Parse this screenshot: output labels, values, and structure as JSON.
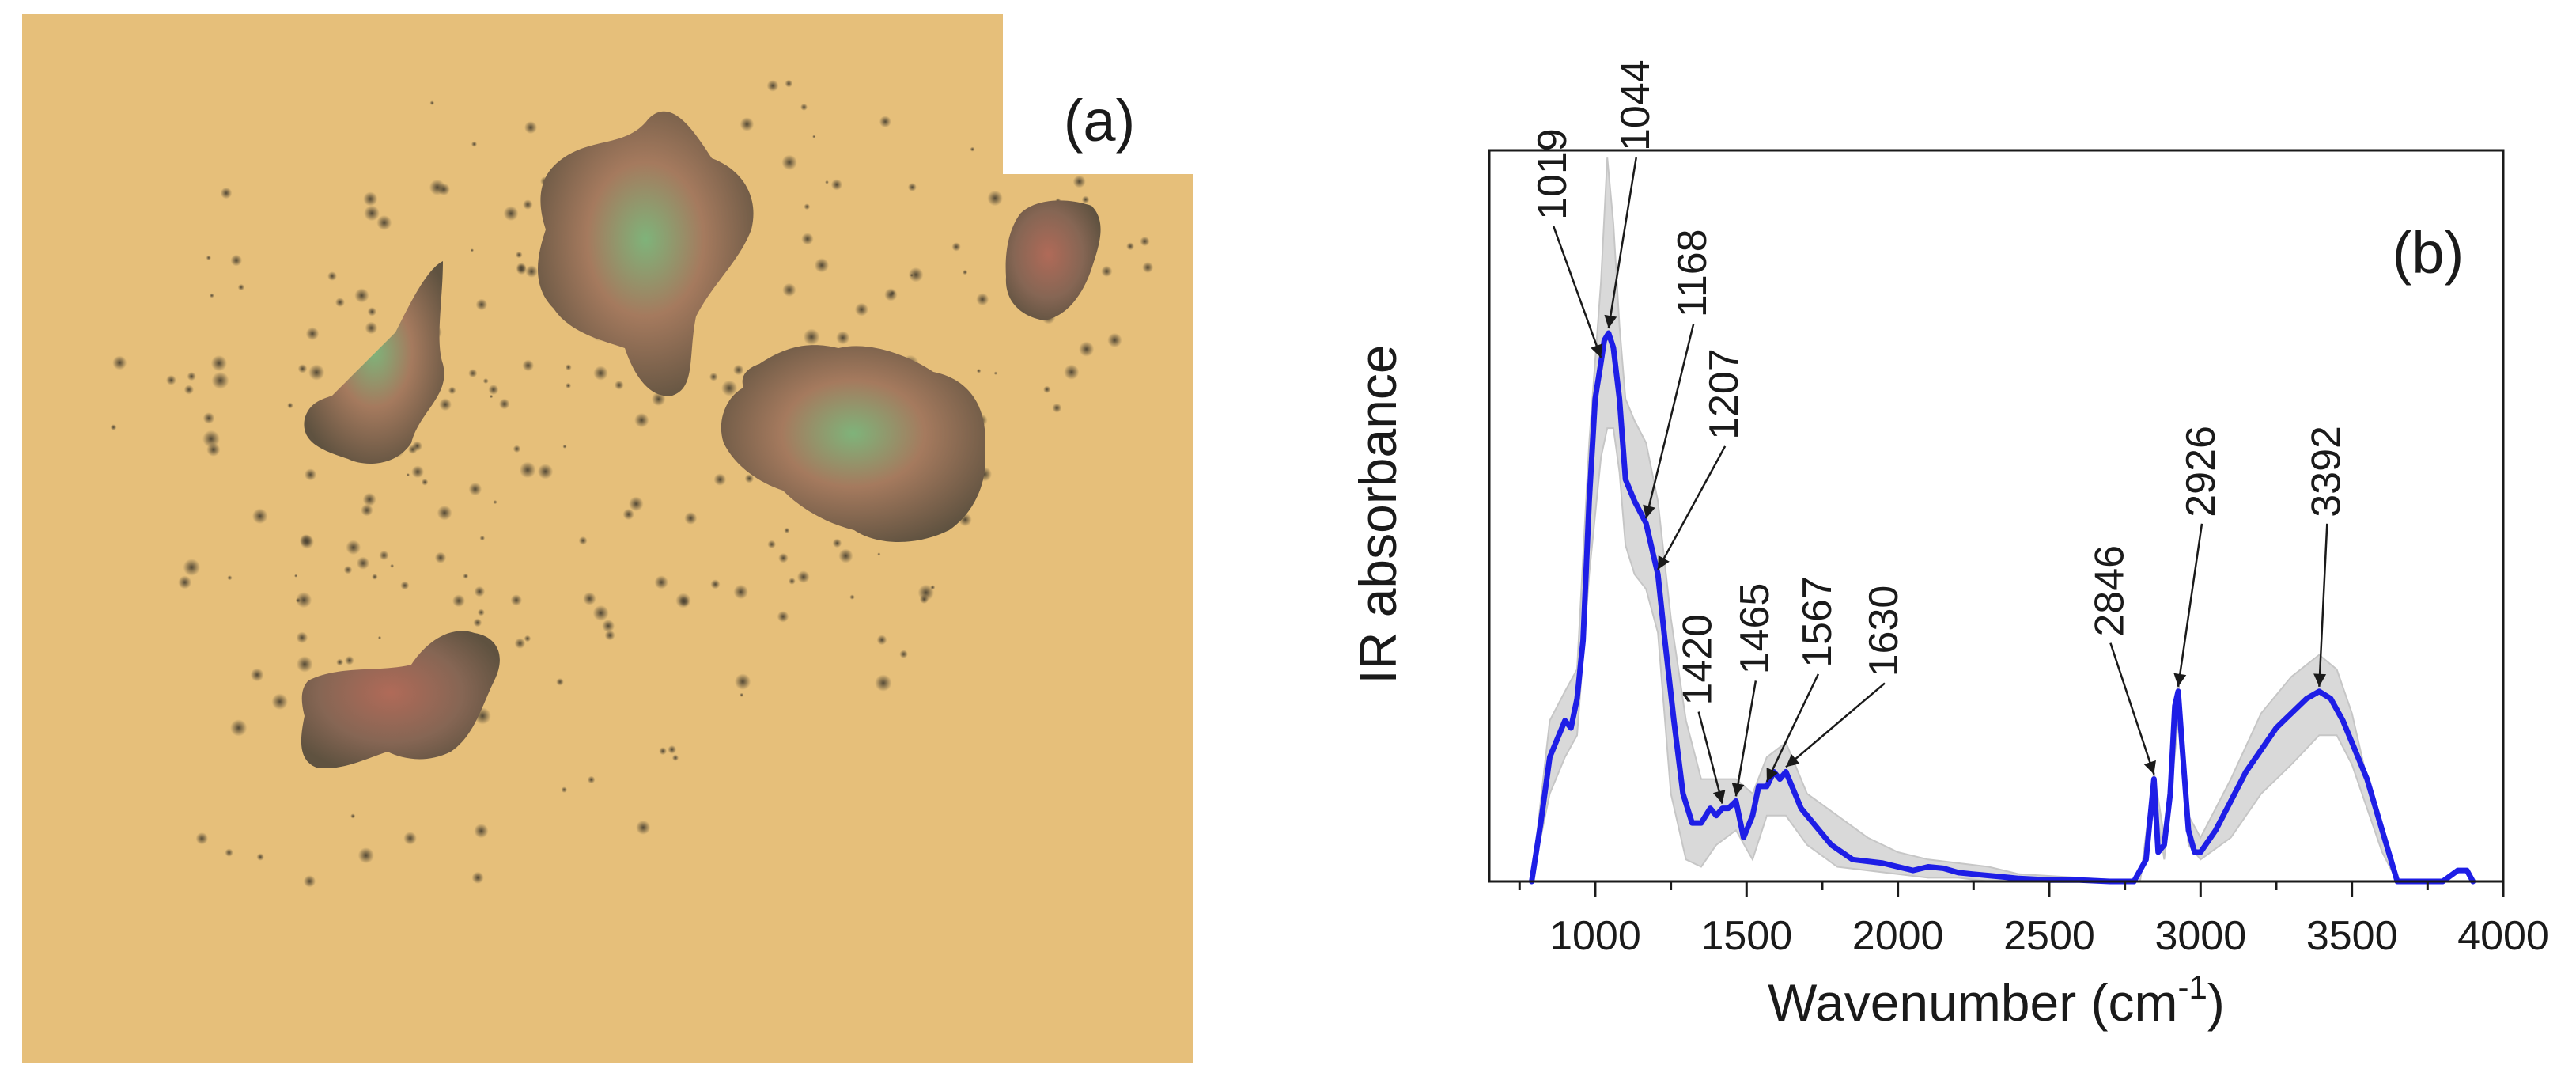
{
  "figure": {
    "panel_a": {
      "label": "(a)",
      "colors": {
        "background": "#e7c07a",
        "particle_dark": "#6d6049",
        "particle_green": "#6f9b6a",
        "particle_red": "#a46b55"
      },
      "particles": [
        {
          "name": "particle-large-top",
          "kind": "large"
        },
        {
          "name": "particle-large-right",
          "kind": "large"
        },
        {
          "name": "particle-large-left",
          "kind": "large"
        },
        {
          "name": "particle-bottom-left",
          "kind": "large"
        },
        {
          "name": "particle-top-right",
          "kind": "medium"
        }
      ]
    },
    "panel_b": {
      "label": "(b)"
    }
  },
  "chart_data": {
    "type": "line",
    "xlabel": "Wavenumber (cm",
    "xlabel_sup": "-1",
    "xlabel_close": ")",
    "ylabel": "IR absorbance",
    "xlim": [
      650,
      4000
    ],
    "ylim": [
      0,
      1.0
    ],
    "x_ticks": [
      1000,
      1500,
      2000,
      2500,
      3000,
      3500,
      4000
    ],
    "x_ticklabels": [
      "1000",
      "1500",
      "2000",
      "2500",
      "3000",
      "3500",
      "4000"
    ],
    "grid": false,
    "series": [
      {
        "role": "mean",
        "color": "#1e1ee6",
        "x": [
          790,
          820,
          850,
          880,
          900,
          920,
          940,
          960,
          980,
          1000,
          1019,
          1030,
          1044,
          1060,
          1080,
          1100,
          1130,
          1168,
          1190,
          1207,
          1230,
          1260,
          1290,
          1320,
          1350,
          1380,
          1400,
          1420,
          1440,
          1465,
          1490,
          1520,
          1540,
          1567,
          1590,
          1610,
          1630,
          1650,
          1680,
          1720,
          1780,
          1850,
          1950,
          2000,
          2050,
          2100,
          2150,
          2200,
          2250,
          2300,
          2400,
          2500,
          2600,
          2700,
          2780,
          2820,
          2846,
          2860,
          2880,
          2900,
          2915,
          2926,
          2940,
          2960,
          2980,
          3000,
          3050,
          3100,
          3150,
          3200,
          3250,
          3300,
          3350,
          3392,
          3430,
          3470,
          3500,
          3550,
          3600,
          3650,
          3700,
          3750,
          3800,
          3850,
          3880,
          3900
        ],
        "y": [
          0.0,
          0.08,
          0.17,
          0.2,
          0.22,
          0.21,
          0.25,
          0.33,
          0.52,
          0.66,
          0.71,
          0.74,
          0.75,
          0.73,
          0.66,
          0.55,
          0.52,
          0.49,
          0.45,
          0.42,
          0.33,
          0.22,
          0.12,
          0.08,
          0.08,
          0.1,
          0.09,
          0.1,
          0.1,
          0.11,
          0.06,
          0.09,
          0.13,
          0.13,
          0.15,
          0.14,
          0.15,
          0.13,
          0.1,
          0.08,
          0.05,
          0.03,
          0.025,
          0.02,
          0.015,
          0.02,
          0.018,
          0.012,
          0.01,
          0.008,
          0.004,
          0.002,
          0.002,
          0.0,
          0.0,
          0.03,
          0.14,
          0.04,
          0.05,
          0.12,
          0.24,
          0.26,
          0.18,
          0.07,
          0.04,
          0.04,
          0.07,
          0.11,
          0.15,
          0.18,
          0.21,
          0.23,
          0.25,
          0.26,
          0.25,
          0.22,
          0.19,
          0.14,
          0.07,
          0.0,
          0.0,
          0.0,
          0.0,
          0.015,
          0.015,
          0.0
        ]
      },
      {
        "role": "variability band (upper)",
        "color": "#d9d9d9",
        "x": [
          790,
          850,
          900,
          940,
          980,
          1019,
          1040,
          1060,
          1080,
          1100,
          1130,
          1168,
          1207,
          1250,
          1300,
          1350,
          1400,
          1465,
          1520,
          1567,
          1630,
          1700,
          1800,
          1900,
          2000,
          2100,
          2200,
          2300,
          2400,
          2600,
          2800,
          2846,
          2880,
          2926,
          2960,
          3000,
          3100,
          3200,
          3300,
          3392,
          3450,
          3500,
          3550,
          3600,
          3650,
          3700,
          3800,
          3900
        ],
        "y": [
          0.0,
          0.22,
          0.26,
          0.29,
          0.6,
          0.82,
          0.99,
          0.9,
          0.76,
          0.66,
          0.63,
          0.6,
          0.52,
          0.36,
          0.22,
          0.14,
          0.14,
          0.14,
          0.12,
          0.17,
          0.19,
          0.12,
          0.09,
          0.06,
          0.04,
          0.03,
          0.025,
          0.02,
          0.01,
          0.005,
          0.0,
          0.15,
          0.06,
          0.28,
          0.09,
          0.06,
          0.14,
          0.23,
          0.28,
          0.31,
          0.29,
          0.23,
          0.14,
          0.07,
          0.0,
          0.0,
          0.0,
          0.0
        ]
      },
      {
        "role": "variability band (lower)",
        "color": "#d9d9d9",
        "x": [
          790,
          850,
          900,
          940,
          980,
          1019,
          1040,
          1060,
          1080,
          1100,
          1130,
          1168,
          1207,
          1250,
          1300,
          1350,
          1400,
          1465,
          1520,
          1567,
          1630,
          1700,
          1800,
          1900,
          2000,
          2100,
          2200,
          2300,
          2400,
          2600,
          2800,
          2846,
          2880,
          2926,
          2960,
          3000,
          3100,
          3200,
          3300,
          3392,
          3450,
          3500,
          3550,
          3600,
          3650,
          3700,
          3800,
          3900
        ],
        "y": [
          0.0,
          0.12,
          0.17,
          0.2,
          0.42,
          0.58,
          0.62,
          0.62,
          0.56,
          0.46,
          0.42,
          0.4,
          0.34,
          0.12,
          0.03,
          0.02,
          0.05,
          0.07,
          0.03,
          0.09,
          0.09,
          0.05,
          0.02,
          0.015,
          0.01,
          0.005,
          0.005,
          0.0,
          0.0,
          0.0,
          0.0,
          0.12,
          0.03,
          0.22,
          0.05,
          0.03,
          0.06,
          0.12,
          0.16,
          0.2,
          0.2,
          0.16,
          0.1,
          0.04,
          0.0,
          0.0,
          0.0,
          0.0
        ]
      }
    ],
    "annotations": [
      {
        "text": "1019",
        "x": 1019,
        "y": 0.71
      },
      {
        "text": "1044",
        "x": 1044,
        "y": 0.75
      },
      {
        "text": "1168",
        "x": 1168,
        "y": 0.49
      },
      {
        "text": "1207",
        "x": 1207,
        "y": 0.42
      },
      {
        "text": "1420",
        "x": 1420,
        "y": 0.1
      },
      {
        "text": "1465",
        "x": 1465,
        "y": 0.11
      },
      {
        "text": "1567",
        "x": 1567,
        "y": 0.13
      },
      {
        "text": "1630",
        "x": 1630,
        "y": 0.15
      },
      {
        "text": "2846",
        "x": 2846,
        "y": 0.14
      },
      {
        "text": "2926",
        "x": 2926,
        "y": 0.26
      },
      {
        "text": "3392",
        "x": 3392,
        "y": 0.26
      }
    ]
  }
}
